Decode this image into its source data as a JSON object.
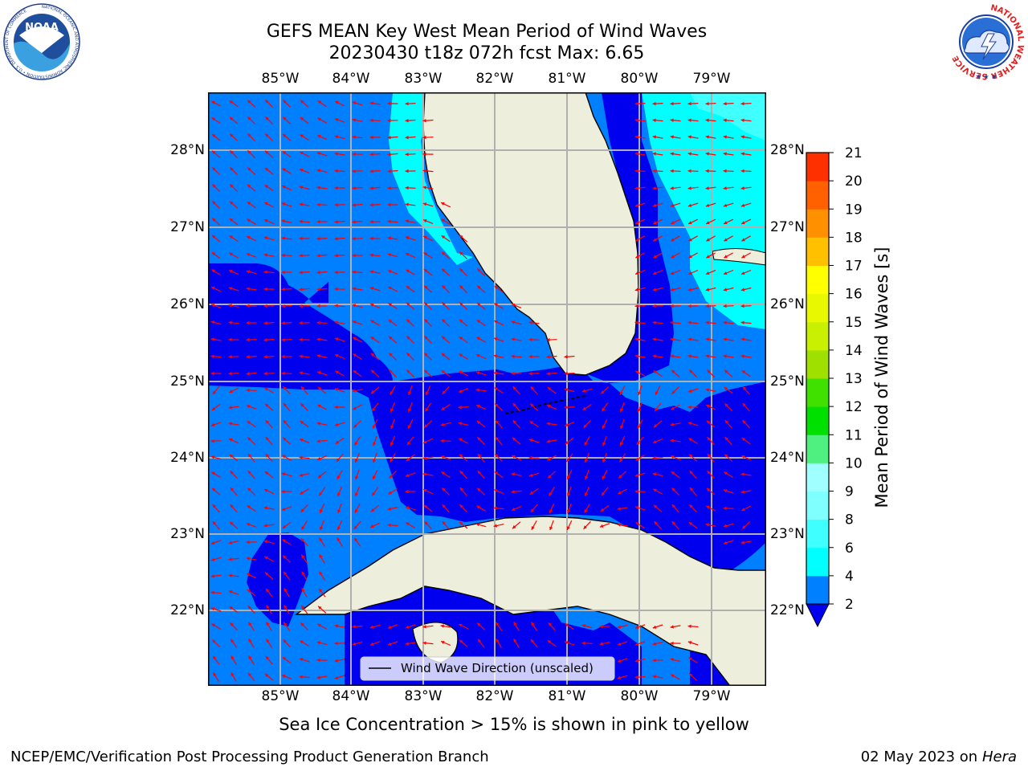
{
  "header": {
    "title_line1": "GEFS MEAN Key West Mean Period of Wind Waves",
    "title_line2": "20230430 t18z 072h fcst   Max: 6.65"
  },
  "logos": {
    "noaa_text": "NOAA",
    "noaa_ring_text": "NATIONAL OCEANIC AND ATMOSPHERIC ADMINISTRATION • U.S. DEPARTMENT OF COMMERCE",
    "nws_ring_text": "NATIONAL WEATHER SERVICE"
  },
  "map": {
    "lon_labels": [
      "85°W",
      "84°W",
      "83°W",
      "82°W",
      "81°W",
      "80°W",
      "79°W"
    ],
    "lat_labels": [
      "28°N",
      "27°N",
      "26°N",
      "25°N",
      "24°N",
      "23°N",
      "22°N"
    ],
    "legend_label": "Wind Wave Direction (unscaled)",
    "colors": {
      "land": "#eeeedc",
      "period_2_4": "#0080ff",
      "period_lt_2": "#0000ee",
      "period_4_6": "#00ffff",
      "period_6_8": "#40ffff",
      "arrow": "#ff0000"
    }
  },
  "colorbar": {
    "label": "Mean Period of Wind Waves [s]",
    "ticks": [
      "2",
      "4",
      "6",
      "8",
      "9",
      "10",
      "11",
      "12",
      "13",
      "14",
      "15",
      "16",
      "17",
      "18",
      "19",
      "20",
      "21"
    ],
    "colors": [
      "#0080ff",
      "#00ffff",
      "#40ffff",
      "#80ffff",
      "#a0ffff",
      "#50f080",
      "#00e000",
      "#40e000",
      "#a0e000",
      "#c8f000",
      "#e8f800",
      "#ffff00",
      "#ffc000",
      "#ff9000",
      "#ff6000",
      "#ff3000",
      "#ff0000"
    ],
    "under_color": "#0000ee"
  },
  "footer": {
    "sea_ice_note": "Sea Ice Concentration > 15% is shown in pink to yellow",
    "credit": "NCEP/EMC/Verification Post Processing Product Generation Branch",
    "date": "02 May 2023 on",
    "machine": "Hera"
  }
}
